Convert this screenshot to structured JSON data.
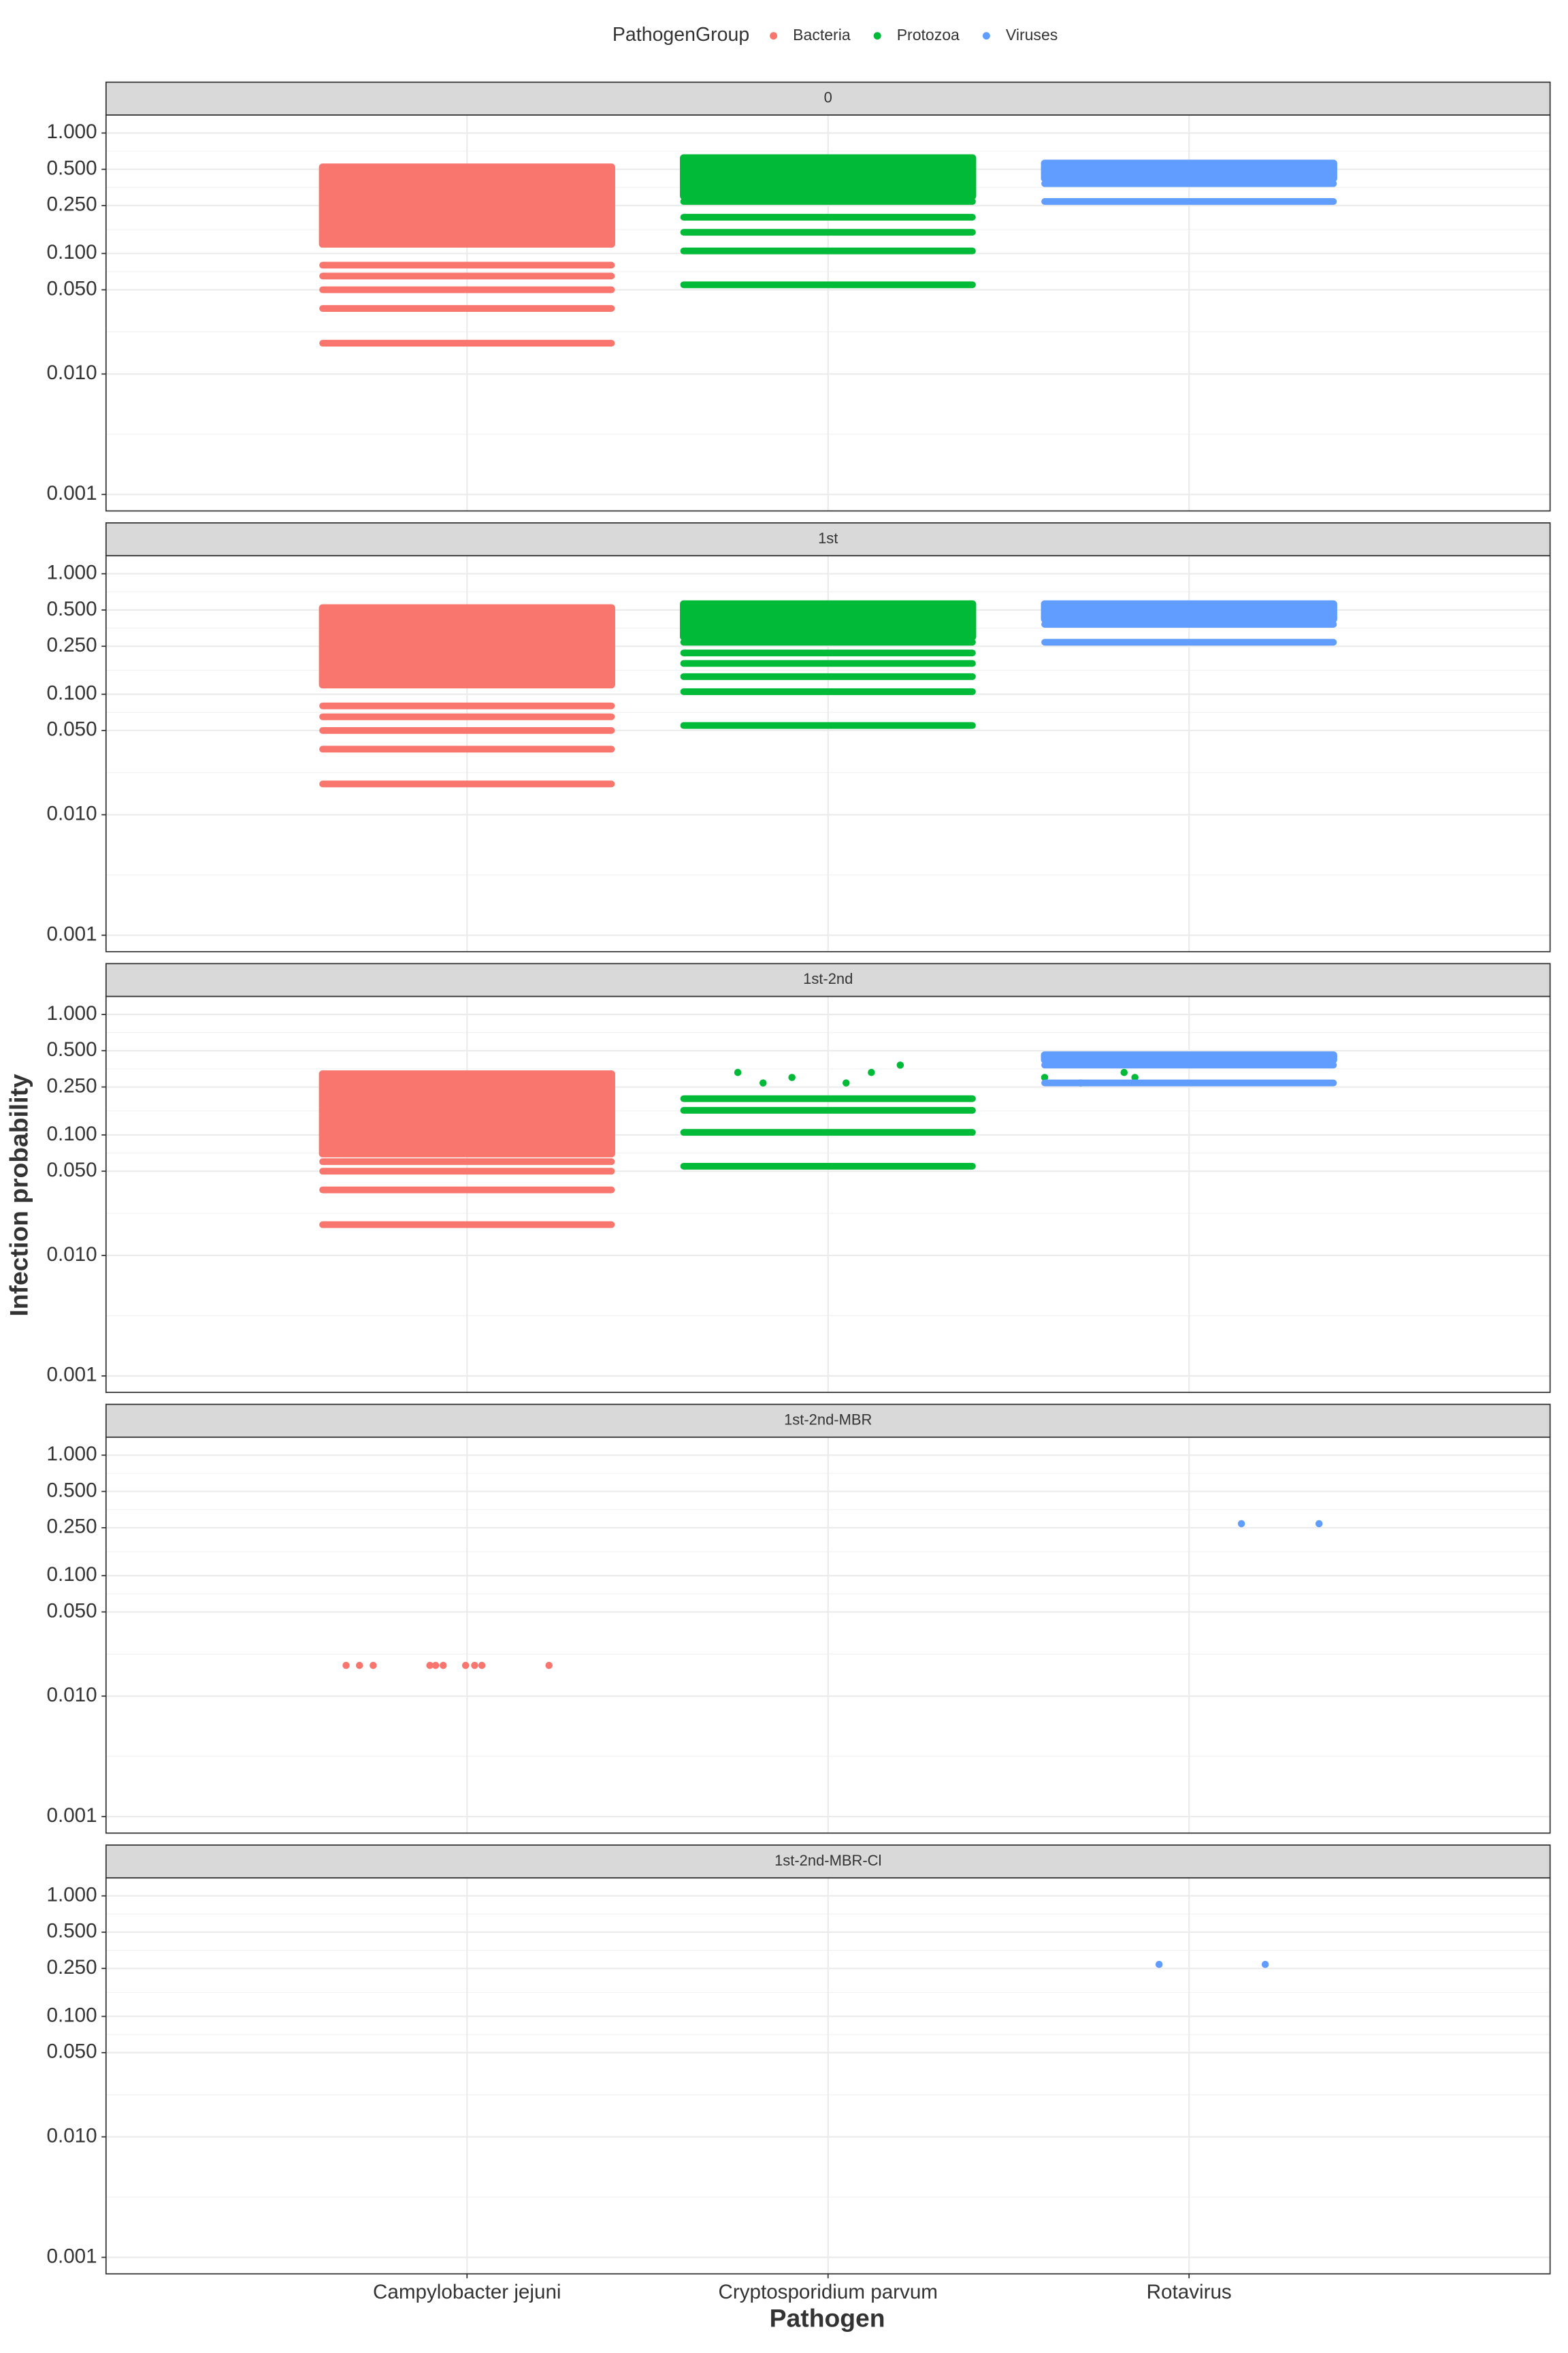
{
  "chart_data": {
    "type": "jitter",
    "xlabel": "Pathogen",
    "ylabel": "Infection probability",
    "legend_title": "PathogenGroup",
    "legend": "top",
    "log_y": true,
    "grid": true,
    "categories": [
      "Campylobacter jejuni",
      "Cryptosporidium parvum",
      "Rotavirus"
    ],
    "xlim": [
      0,
      4
    ],
    "jitter": 0.4,
    "ylim": [
      0.00073,
      1.41
    ],
    "yticks": [
      {
        "value": 1,
        "label": "1.000"
      },
      {
        "value": 0.5,
        "label": "0.500"
      },
      {
        "value": 0.25,
        "label": "0.250"
      },
      {
        "value": 0.1,
        "label": "0.100"
      },
      {
        "value": 0.05,
        "label": "0.050"
      },
      {
        "value": 0.01,
        "label": "0.010"
      },
      {
        "value": 0.001,
        "label": "0.001"
      }
    ],
    "series": [
      {
        "name": "Bacteria",
        "color": "#f8766d"
      },
      {
        "name": "Protozoa",
        "color": "#00ba38"
      },
      {
        "name": "Viruses",
        "color": "#619cff"
      }
    ],
    "panels": [
      {
        "label": "0",
        "series": [
          {
            "band": [
              0.12,
              0.52
            ],
            "levels": [
              0.08,
              0.065,
              0.05,
              0.035,
              0.018
            ],
            "x": [],
            "y": []
          },
          {
            "band": [
              0.3,
              0.62
            ],
            "levels": [
              0.27,
              0.2,
              0.15,
              0.105,
              0.055
            ],
            "x": [],
            "y": []
          },
          {
            "band": [
              0.42,
              0.56
            ],
            "levels": [
              0.38,
              0.27
            ],
            "x": [],
            "y": []
          }
        ]
      },
      {
        "label": "1st",
        "series": [
          {
            "band": [
              0.12,
              0.52
            ],
            "levels": [
              0.08,
              0.065,
              0.05,
              0.035,
              0.018
            ],
            "x": [],
            "y": []
          },
          {
            "band": [
              0.3,
              0.56
            ],
            "levels": [
              0.27,
              0.22,
              0.18,
              0.14,
              0.105,
              0.055
            ],
            "x": [],
            "y": []
          },
          {
            "band": [
              0.42,
              0.56
            ],
            "levels": [
              0.38,
              0.27
            ],
            "x": [],
            "y": []
          }
        ]
      },
      {
        "label": "1st-2nd",
        "series": [
          {
            "band": [
              0.07,
              0.32
            ],
            "levels": [
              0.06,
              0.05,
              0.035,
              0.018
            ],
            "x": [],
            "y": []
          },
          {
            "band": null,
            "levels": [
              0.2,
              0.16,
              0.105,
              0.055
            ],
            "x": [
              1.75,
              1.82,
              1.9,
              2.05,
              2.12,
              2.2,
              2.6,
              2.7,
              2.82,
              2.85
            ],
            "y": [
              0.33,
              0.27,
              0.3,
              0.27,
              0.33,
              0.38,
              0.3,
              0.27,
              0.33,
              0.3
            ]
          },
          {
            "band": [
              0.42,
              0.46
            ],
            "levels": [
              0.38,
              0.27
            ],
            "x": [],
            "y": []
          }
        ]
      },
      {
        "label": "1st-2nd-MBR",
        "series": [
          {
            "band": null,
            "levels": [],
            "x": [
              0.665,
              0.702,
              0.74,
              0.897,
              0.913,
              0.934,
              0.996,
              1.021,
              1.041,
              1.227
            ],
            "y": [
              0.018,
              0.018,
              0.018,
              0.018,
              0.018,
              0.018,
              0.018,
              0.018,
              0.018,
              0.018
            ]
          },
          {
            "band": null,
            "levels": [],
            "x": [],
            "y": []
          },
          {
            "band": null,
            "levels": [],
            "x": [
              3.145,
              3.36
            ],
            "y": [
              0.27,
              0.27
            ]
          }
        ]
      },
      {
        "label": "1st-2nd-MBR-Cl",
        "series": [
          {
            "band": null,
            "levels": [],
            "x": [],
            "y": []
          },
          {
            "band": null,
            "levels": [],
            "x": [],
            "y": []
          },
          {
            "band": null,
            "levels": [],
            "x": [
              2.917,
              3.211
            ],
            "y": [
              0.27,
              0.27
            ]
          }
        ]
      }
    ]
  }
}
